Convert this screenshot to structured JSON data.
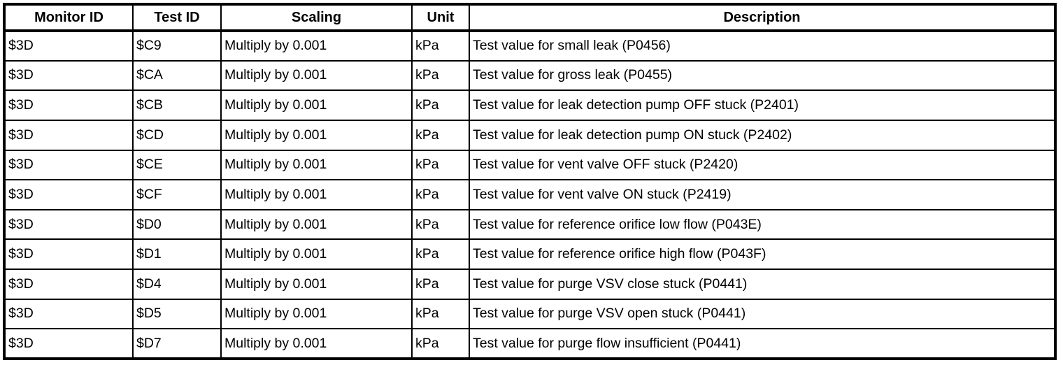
{
  "table": {
    "columns": [
      "Monitor ID",
      "Test ID",
      "Scaling",
      "Unit",
      "Description"
    ],
    "rows": [
      {
        "monitor_id": "$3D",
        "test_id": "$C9",
        "scaling": "Multiply by 0.001",
        "unit": "kPa",
        "description": "Test value for small leak (P0456)"
      },
      {
        "monitor_id": "$3D",
        "test_id": "$CA",
        "scaling": "Multiply by 0.001",
        "unit": "kPa",
        "description": "Test value for gross leak (P0455)"
      },
      {
        "monitor_id": "$3D",
        "test_id": "$CB",
        "scaling": "Multiply by 0.001",
        "unit": "kPa",
        "description": "Test value for leak detection pump OFF stuck (P2401)"
      },
      {
        "monitor_id": "$3D",
        "test_id": "$CD",
        "scaling": "Multiply by 0.001",
        "unit": "kPa",
        "description": "Test value for leak detection pump ON stuck (P2402)"
      },
      {
        "monitor_id": "$3D",
        "test_id": "$CE",
        "scaling": "Multiply by 0.001",
        "unit": "kPa",
        "description": "Test value for vent valve OFF stuck (P2420)"
      },
      {
        "monitor_id": "$3D",
        "test_id": "$CF",
        "scaling": "Multiply by 0.001",
        "unit": "kPa",
        "description": "Test value for vent valve ON stuck (P2419)"
      },
      {
        "monitor_id": "$3D",
        "test_id": "$D0",
        "scaling": "Multiply by 0.001",
        "unit": "kPa",
        "description": "Test value for reference orifice low flow (P043E)"
      },
      {
        "monitor_id": "$3D",
        "test_id": "$D1",
        "scaling": "Multiply by 0.001",
        "unit": "kPa",
        "description": "Test value for reference orifice high flow (P043F)"
      },
      {
        "monitor_id": "$3D",
        "test_id": "$D4",
        "scaling": "Multiply by 0.001",
        "unit": "kPa",
        "description": "Test value for purge VSV close stuck (P0441)"
      },
      {
        "monitor_id": "$3D",
        "test_id": "$D5",
        "scaling": "Multiply by 0.001",
        "unit": "kPa",
        "description": "Test value for purge VSV open stuck (P0441)"
      },
      {
        "monitor_id": "$3D",
        "test_id": "$D7",
        "scaling": "Multiply by 0.001",
        "unit": "kPa",
        "description": "Test value for purge flow insufficient (P0441)"
      }
    ]
  },
  "colors": {
    "border": "#000000",
    "text": "#000000",
    "background": "#ffffff"
  }
}
